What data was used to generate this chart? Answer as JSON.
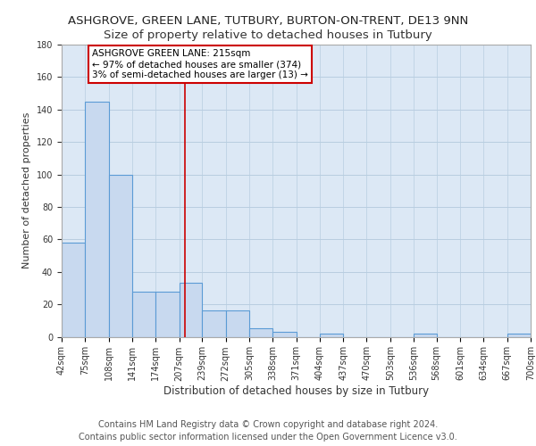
{
  "title1": "ASHGROVE, GREEN LANE, TUTBURY, BURTON-ON-TRENT, DE13 9NN",
  "title2": "Size of property relative to detached houses in Tutbury",
  "xlabel": "Distribution of detached houses by size in Tutbury",
  "ylabel": "Number of detached properties",
  "annotation_line1": "ASHGROVE GREEN LANE: 215sqm",
  "annotation_line2": "← 97% of detached houses are smaller (374)",
  "annotation_line3": "3% of semi-detached houses are larger (13) →",
  "footer1": "Contains HM Land Registry data © Crown copyright and database right 2024.",
  "footer2": "Contains public sector information licensed under the Open Government Licence v3.0.",
  "bin_edges": [
    42,
    75,
    108,
    141,
    174,
    207,
    239,
    272,
    305,
    338,
    371,
    404,
    437,
    470,
    503,
    536,
    568,
    601,
    634,
    667,
    700
  ],
  "bin_labels": [
    "42sqm",
    "75sqm",
    "108sqm",
    "141sqm",
    "174sqm",
    "207sqm",
    "239sqm",
    "272sqm",
    "305sqm",
    "338sqm",
    "371sqm",
    "404sqm",
    "437sqm",
    "470sqm",
    "503sqm",
    "536sqm",
    "568sqm",
    "601sqm",
    "634sqm",
    "667sqm",
    "700sqm"
  ],
  "bar_heights": [
    58,
    145,
    100,
    28,
    28,
    33,
    16,
    16,
    5,
    3,
    0,
    2,
    0,
    0,
    0,
    2,
    0,
    0,
    0,
    2
  ],
  "bar_color": "#c8d9ef",
  "bar_edge_color": "#5b9bd5",
  "bar_edge_width": 0.8,
  "grid_color": "#b8cde0",
  "bg_color": "#dce8f5",
  "red_line_x": 215,
  "ylim": [
    0,
    180
  ],
  "yticks": [
    0,
    20,
    40,
    60,
    80,
    100,
    120,
    140,
    160,
    180
  ],
  "annotation_box_color": "#ffffff",
  "annotation_box_edge": "#cc0000",
  "title1_fontsize": 9.5,
  "title2_fontsize": 9.5,
  "xlabel_fontsize": 8.5,
  "ylabel_fontsize": 8.0,
  "tick_fontsize": 7.0,
  "annotation_fontsize": 7.5,
  "footer_fontsize": 7.0
}
